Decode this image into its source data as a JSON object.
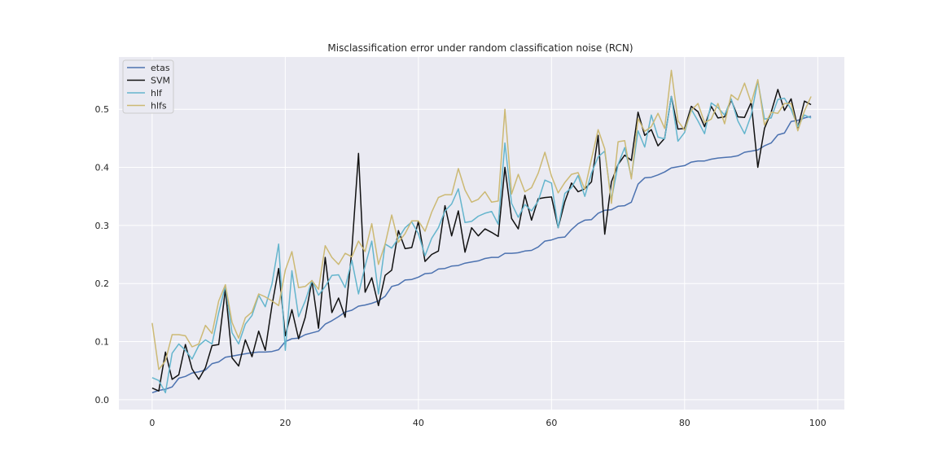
{
  "chart_data": {
    "type": "line",
    "title": "Misclassification error under random classification noise (RCN)",
    "xlabel": "",
    "ylabel": "",
    "xlim": [
      -5,
      104
    ],
    "ylim": [
      -0.017,
      0.59
    ],
    "xticks": [
      0,
      20,
      40,
      60,
      80,
      100
    ],
    "yticks": [
      0.0,
      0.1,
      0.2,
      0.3,
      0.4,
      0.5
    ],
    "xtick_labels": [
      "0",
      "20",
      "40",
      "60",
      "80",
      "100"
    ],
    "ytick_labels": [
      "0.0",
      "0.1",
      "0.2",
      "0.3",
      "0.4",
      "0.5"
    ],
    "grid": true,
    "legend_position": "top-left",
    "background": "#eaeaf2",
    "series": [
      {
        "name": "etas",
        "color": "#4c72b0",
        "x": [
          0,
          1,
          2,
          3,
          4,
          5,
          6,
          7,
          8,
          9,
          10,
          11,
          12,
          13,
          14,
          15,
          16,
          17,
          18,
          19,
          20,
          21,
          22,
          23,
          24,
          25,
          26,
          27,
          28,
          29,
          30,
          31,
          32,
          33,
          34,
          35,
          36,
          37,
          38,
          39,
          40,
          41,
          42,
          43,
          44,
          45,
          46,
          47,
          48,
          49,
          50,
          51,
          52,
          53,
          54,
          55,
          56,
          57,
          58,
          59,
          60,
          61,
          62,
          63,
          64,
          65,
          66,
          67,
          68,
          69,
          70,
          71,
          72,
          73,
          74,
          75,
          76,
          77,
          78,
          79,
          80,
          81,
          82,
          83,
          84,
          85,
          86,
          87,
          88,
          89,
          90,
          91,
          92,
          93,
          94,
          95,
          96,
          97,
          98,
          99
        ],
        "values": [
          0.012,
          0.016,
          0.018,
          0.022,
          0.037,
          0.04,
          0.046,
          0.048,
          0.051,
          0.062,
          0.065,
          0.073,
          0.075,
          0.077,
          0.079,
          0.081,
          0.082,
          0.082,
          0.083,
          0.086,
          0.1,
          0.105,
          0.106,
          0.112,
          0.115,
          0.118,
          0.13,
          0.136,
          0.143,
          0.151,
          0.154,
          0.161,
          0.163,
          0.166,
          0.17,
          0.178,
          0.195,
          0.198,
          0.206,
          0.207,
          0.211,
          0.217,
          0.218,
          0.225,
          0.226,
          0.23,
          0.231,
          0.235,
          0.237,
          0.239,
          0.243,
          0.245,
          0.245,
          0.252,
          0.252,
          0.253,
          0.256,
          0.257,
          0.263,
          0.273,
          0.275,
          0.279,
          0.28,
          0.293,
          0.303,
          0.309,
          0.31,
          0.321,
          0.326,
          0.327,
          0.333,
          0.334,
          0.34,
          0.371,
          0.382,
          0.383,
          0.387,
          0.392,
          0.399,
          0.401,
          0.403,
          0.409,
          0.411,
          0.411,
          0.414,
          0.416,
          0.417,
          0.418,
          0.42,
          0.426,
          0.428,
          0.43,
          0.437,
          0.442,
          0.456,
          0.459,
          0.479,
          0.481,
          0.485,
          0.488
        ]
      },
      {
        "name": "SVM",
        "color": "#111111",
        "x": [
          0,
          1,
          2,
          3,
          4,
          5,
          6,
          7,
          8,
          9,
          10,
          11,
          12,
          13,
          14,
          15,
          16,
          17,
          18,
          19,
          20,
          21,
          22,
          23,
          24,
          25,
          26,
          27,
          28,
          29,
          30,
          31,
          32,
          33,
          34,
          35,
          36,
          37,
          38,
          39,
          40,
          41,
          42,
          43,
          44,
          45,
          46,
          47,
          48,
          49,
          50,
          51,
          52,
          53,
          54,
          55,
          56,
          57,
          58,
          59,
          60,
          61,
          62,
          63,
          64,
          65,
          66,
          67,
          68,
          69,
          70,
          71,
          72,
          73,
          74,
          75,
          76,
          77,
          78,
          79,
          80,
          81,
          82,
          83,
          84,
          85,
          86,
          87,
          88,
          89,
          90,
          91,
          92,
          93,
          94,
          95,
          96,
          97,
          98,
          99
        ],
        "values": [
          0.02,
          0.015,
          0.082,
          0.035,
          0.043,
          0.095,
          0.053,
          0.035,
          0.055,
          0.093,
          0.095,
          0.19,
          0.072,
          0.058,
          0.103,
          0.074,
          0.118,
          0.085,
          0.162,
          0.226,
          0.11,
          0.155,
          0.105,
          0.142,
          0.205,
          0.123,
          0.245,
          0.15,
          0.175,
          0.142,
          0.257,
          0.424,
          0.185,
          0.21,
          0.162,
          0.214,
          0.223,
          0.291,
          0.26,
          0.262,
          0.307,
          0.238,
          0.25,
          0.256,
          0.334,
          0.282,
          0.325,
          0.254,
          0.296,
          0.282,
          0.294,
          0.288,
          0.281,
          0.4,
          0.312,
          0.294,
          0.352,
          0.309,
          0.346,
          0.348,
          0.349,
          0.296,
          0.341,
          0.373,
          0.358,
          0.363,
          0.375,
          0.455,
          0.285,
          0.375,
          0.405,
          0.421,
          0.412,
          0.495,
          0.455,
          0.465,
          0.437,
          0.45,
          0.522,
          0.466,
          0.467,
          0.505,
          0.496,
          0.47,
          0.505,
          0.485,
          0.487,
          0.516,
          0.487,
          0.486,
          0.512,
          0.4,
          0.467,
          0.495,
          0.534,
          0.498,
          0.518,
          0.468,
          0.514,
          0.508
        ]
      },
      {
        "name": "hlf",
        "color": "#64b5cd",
        "x": [
          0,
          1,
          2,
          3,
          4,
          5,
          6,
          7,
          8,
          9,
          10,
          11,
          12,
          13,
          14,
          15,
          16,
          17,
          18,
          19,
          20,
          21,
          22,
          23,
          24,
          25,
          26,
          27,
          28,
          29,
          30,
          31,
          32,
          33,
          34,
          35,
          36,
          37,
          38,
          39,
          40,
          41,
          42,
          43,
          44,
          45,
          46,
          47,
          48,
          49,
          50,
          51,
          52,
          53,
          54,
          55,
          56,
          57,
          58,
          59,
          60,
          61,
          62,
          63,
          64,
          65,
          66,
          67,
          68,
          69,
          70,
          71,
          72,
          73,
          74,
          75,
          76,
          77,
          78,
          79,
          80,
          81,
          82,
          83,
          84,
          85,
          86,
          87,
          88,
          89,
          90,
          91,
          92,
          93,
          94,
          95,
          96,
          97,
          98,
          99
        ],
        "values": [
          0.038,
          0.033,
          0.012,
          0.08,
          0.096,
          0.085,
          0.07,
          0.093,
          0.103,
          0.096,
          0.15,
          0.196,
          0.115,
          0.096,
          0.13,
          0.145,
          0.18,
          0.16,
          0.199,
          0.268,
          0.085,
          0.222,
          0.143,
          0.17,
          0.205,
          0.18,
          0.195,
          0.214,
          0.215,
          0.193,
          0.24,
          0.182,
          0.23,
          0.273,
          0.182,
          0.268,
          0.261,
          0.278,
          0.296,
          0.306,
          0.286,
          0.248,
          0.278,
          0.296,
          0.325,
          0.337,
          0.363,
          0.305,
          0.307,
          0.316,
          0.321,
          0.324,
          0.302,
          0.442,
          0.338,
          0.314,
          0.336,
          0.325,
          0.342,
          0.378,
          0.373,
          0.296,
          0.355,
          0.365,
          0.386,
          0.35,
          0.39,
          0.418,
          0.428,
          0.344,
          0.405,
          0.434,
          0.383,
          0.463,
          0.435,
          0.49,
          0.452,
          0.449,
          0.522,
          0.445,
          0.46,
          0.5,
          0.48,
          0.458,
          0.511,
          0.503,
          0.49,
          0.518,
          0.48,
          0.458,
          0.49,
          0.549,
          0.483,
          0.485,
          0.517,
          0.519,
          0.5,
          0.47,
          0.49,
          0.485
        ]
      },
      {
        "name": "hlfs",
        "color": "#ccb974",
        "x": [
          0,
          1,
          2,
          3,
          4,
          5,
          6,
          7,
          8,
          9,
          10,
          11,
          12,
          13,
          14,
          15,
          16,
          17,
          18,
          19,
          20,
          21,
          22,
          23,
          24,
          25,
          26,
          27,
          28,
          29,
          30,
          31,
          32,
          33,
          34,
          35,
          36,
          37,
          38,
          39,
          40,
          41,
          42,
          43,
          44,
          45,
          46,
          47,
          48,
          49,
          50,
          51,
          52,
          53,
          54,
          55,
          56,
          57,
          58,
          59,
          60,
          61,
          62,
          63,
          64,
          65,
          66,
          67,
          68,
          69,
          70,
          71,
          72,
          73,
          74,
          75,
          76,
          77,
          78,
          79,
          80,
          81,
          82,
          83,
          84,
          85,
          86,
          87,
          88,
          89,
          90,
          91,
          92,
          93,
          94,
          95,
          96,
          97,
          98,
          99
        ],
        "values": [
          0.132,
          0.052,
          0.067,
          0.112,
          0.112,
          0.11,
          0.091,
          0.096,
          0.128,
          0.114,
          0.17,
          0.198,
          0.133,
          0.106,
          0.141,
          0.151,
          0.182,
          0.177,
          0.17,
          0.162,
          0.223,
          0.255,
          0.193,
          0.195,
          0.205,
          0.19,
          0.265,
          0.245,
          0.233,
          0.252,
          0.246,
          0.273,
          0.255,
          0.303,
          0.233,
          0.268,
          0.318,
          0.271,
          0.286,
          0.308,
          0.308,
          0.29,
          0.323,
          0.348,
          0.353,
          0.353,
          0.398,
          0.361,
          0.34,
          0.345,
          0.358,
          0.34,
          0.342,
          0.5,
          0.354,
          0.388,
          0.358,
          0.365,
          0.39,
          0.426,
          0.385,
          0.356,
          0.374,
          0.388,
          0.391,
          0.362,
          0.414,
          0.465,
          0.432,
          0.338,
          0.444,
          0.446,
          0.38,
          0.484,
          0.462,
          0.47,
          0.493,
          0.467,
          0.567,
          0.48,
          0.464,
          0.498,
          0.51,
          0.477,
          0.483,
          0.51,
          0.475,
          0.525,
          0.516,
          0.545,
          0.511,
          0.551,
          0.473,
          0.495,
          0.493,
          0.51,
          0.51,
          0.463,
          0.497,
          0.522
        ]
      }
    ]
  }
}
